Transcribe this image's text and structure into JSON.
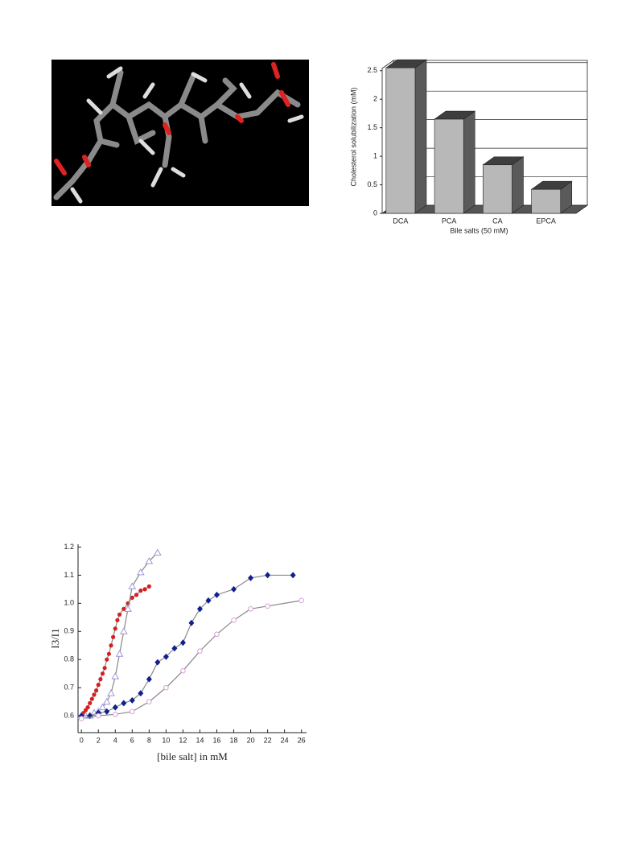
{
  "chart_data": [
    {
      "type": "bar",
      "categories": [
        "DCA",
        "PCA",
        "CA",
        "EPCA"
      ],
      "values": [
        2.55,
        1.65,
        0.85,
        0.42
      ],
      "ylabel": "Cholesterol solubilization (mM)",
      "xlabel": "Bile salts (50 mM)",
      "ylim": [
        0,
        2.68
      ],
      "yticks": [
        0,
        0.5,
        1,
        1.5,
        2,
        2.5
      ],
      "grid": true,
      "color": "#b8b8b8"
    },
    {
      "type": "scatter",
      "xlabel": "[bile salt] in mM",
      "ylabel": "I3/I1",
      "xlim": [
        -0.4,
        26.6
      ],
      "xticks": [
        0,
        2,
        4,
        6,
        8,
        10,
        12,
        14,
        16,
        18,
        20,
        22,
        24,
        26
      ],
      "ylim": [
        0.54,
        1.21
      ],
      "yticks": [
        0.6,
        0.7,
        0.8,
        0.9,
        {
          "value": 1,
          "label": "1.0"
        },
        1.1,
        1.2
      ],
      "series": [
        {
          "color": "#d42020",
          "marker": "circle",
          "x": [
            0,
            0.25,
            0.5,
            0.75,
            1,
            1.25,
            1.5,
            1.75,
            2,
            2.25,
            2.5,
            2.75,
            3,
            3.25,
            3.5,
            3.75,
            4,
            4.25,
            4.5,
            5,
            5.5,
            6,
            6.5,
            7,
            7.5,
            8
          ],
          "values": [
            0.6,
            0.61,
            0.62,
            0.63,
            0.645,
            0.66,
            0.675,
            0.69,
            0.71,
            0.73,
            0.75,
            0.77,
            0.8,
            0.82,
            0.85,
            0.88,
            0.91,
            0.94,
            0.96,
            0.98,
            1.0,
            1.02,
            1.03,
            1.045,
            1.05,
            1.06
          ]
        },
        {
          "color": "#9a9ad8",
          "marker": "triangle",
          "x": [
            0,
            0.5,
            1,
            1.5,
            2,
            2.5,
            3,
            3.5,
            4,
            4.5,
            5,
            5.5,
            6,
            7,
            8,
            9
          ],
          "values": [
            0.6,
            0.6,
            0.6,
            0.61,
            0.615,
            0.63,
            0.65,
            0.68,
            0.74,
            0.82,
            0.9,
            0.98,
            1.06,
            1.11,
            1.15,
            1.18
          ]
        },
        {
          "color": "#102090",
          "marker": "diamond",
          "x": [
            0,
            1,
            2,
            3,
            4,
            5,
            6,
            7,
            8,
            9,
            10,
            11,
            12,
            13,
            14,
            15,
            16,
            18,
            20,
            22,
            25
          ],
          "values": [
            0.6,
            0.6,
            0.61,
            0.615,
            0.63,
            0.645,
            0.655,
            0.68,
            0.73,
            0.79,
            0.81,
            0.84,
            0.86,
            0.93,
            0.98,
            1.01,
            1.03,
            1.05,
            1.09,
            1.1,
            1.1
          ]
        },
        {
          "color": "#d8a0d8",
          "marker": "hollow",
          "x": [
            0,
            2,
            4,
            6,
            8,
            10,
            12,
            14,
            16,
            18,
            20,
            22,
            26
          ],
          "values": [
            0.59,
            0.6,
            0.605,
            0.615,
            0.65,
            0.7,
            0.76,
            0.83,
            0.89,
            0.94,
            0.98,
            0.99,
            1.01
          ]
        }
      ]
    }
  ]
}
